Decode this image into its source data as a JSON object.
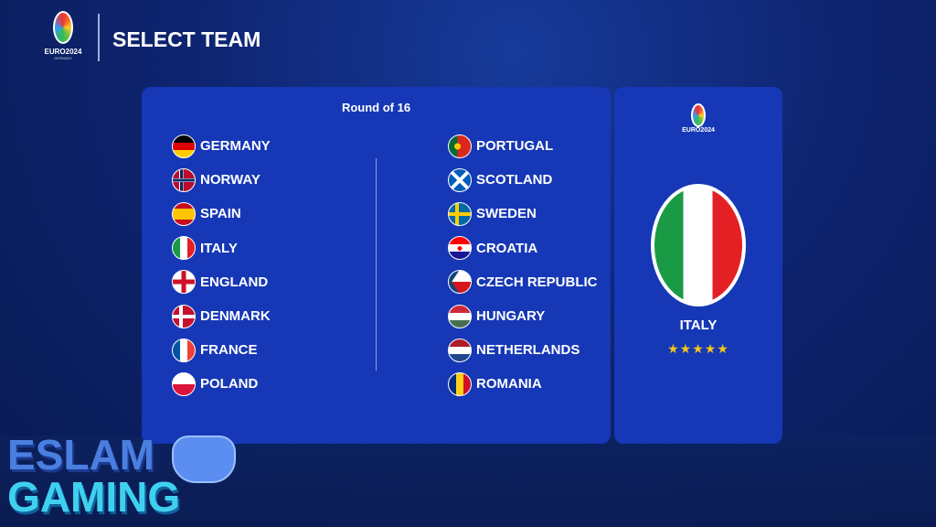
{
  "header": {
    "title": "SELECT TEAM",
    "logo_text": "EURO2024",
    "logo_sub": "GERMANY"
  },
  "panel": {
    "round": "Round of 16",
    "left_teams": [
      {
        "name": "GERMANY",
        "flag": "flag-germany"
      },
      {
        "name": "NORWAY",
        "flag": "flag-norway"
      },
      {
        "name": "SPAIN",
        "flag": "flag-spain"
      },
      {
        "name": "ITALY",
        "flag": "flag-italy"
      },
      {
        "name": "ENGLAND",
        "flag": "flag-england"
      },
      {
        "name": "DENMARK",
        "flag": "flag-denmark"
      },
      {
        "name": "FRANCE",
        "flag": "flag-france"
      },
      {
        "name": "POLAND",
        "flag": "flag-poland"
      }
    ],
    "right_teams": [
      {
        "name": "PORTUGAL",
        "flag": "flag-portugal"
      },
      {
        "name": "SCOTLAND",
        "flag": "flag-scotland"
      },
      {
        "name": "SWEDEN",
        "flag": "flag-sweden"
      },
      {
        "name": "CROATIA",
        "flag": "flag-croatia"
      },
      {
        "name": "CZECH REPUBLIC",
        "flag": "flag-czech"
      },
      {
        "name": "HUNGARY",
        "flag": "flag-hungary"
      },
      {
        "name": "NETHERLANDS",
        "flag": "flag-netherlands"
      },
      {
        "name": "ROMANIA",
        "flag": "flag-romania"
      }
    ]
  },
  "selected": {
    "name": "ITALY",
    "rating_stars": 5,
    "stars": "★★★★★",
    "logo_text": "EURO2024"
  },
  "watermark": {
    "line1": "ESLAM",
    "line2": "GAMING"
  },
  "colors": {
    "panel": "#1638b6",
    "star": "#f5c518"
  }
}
